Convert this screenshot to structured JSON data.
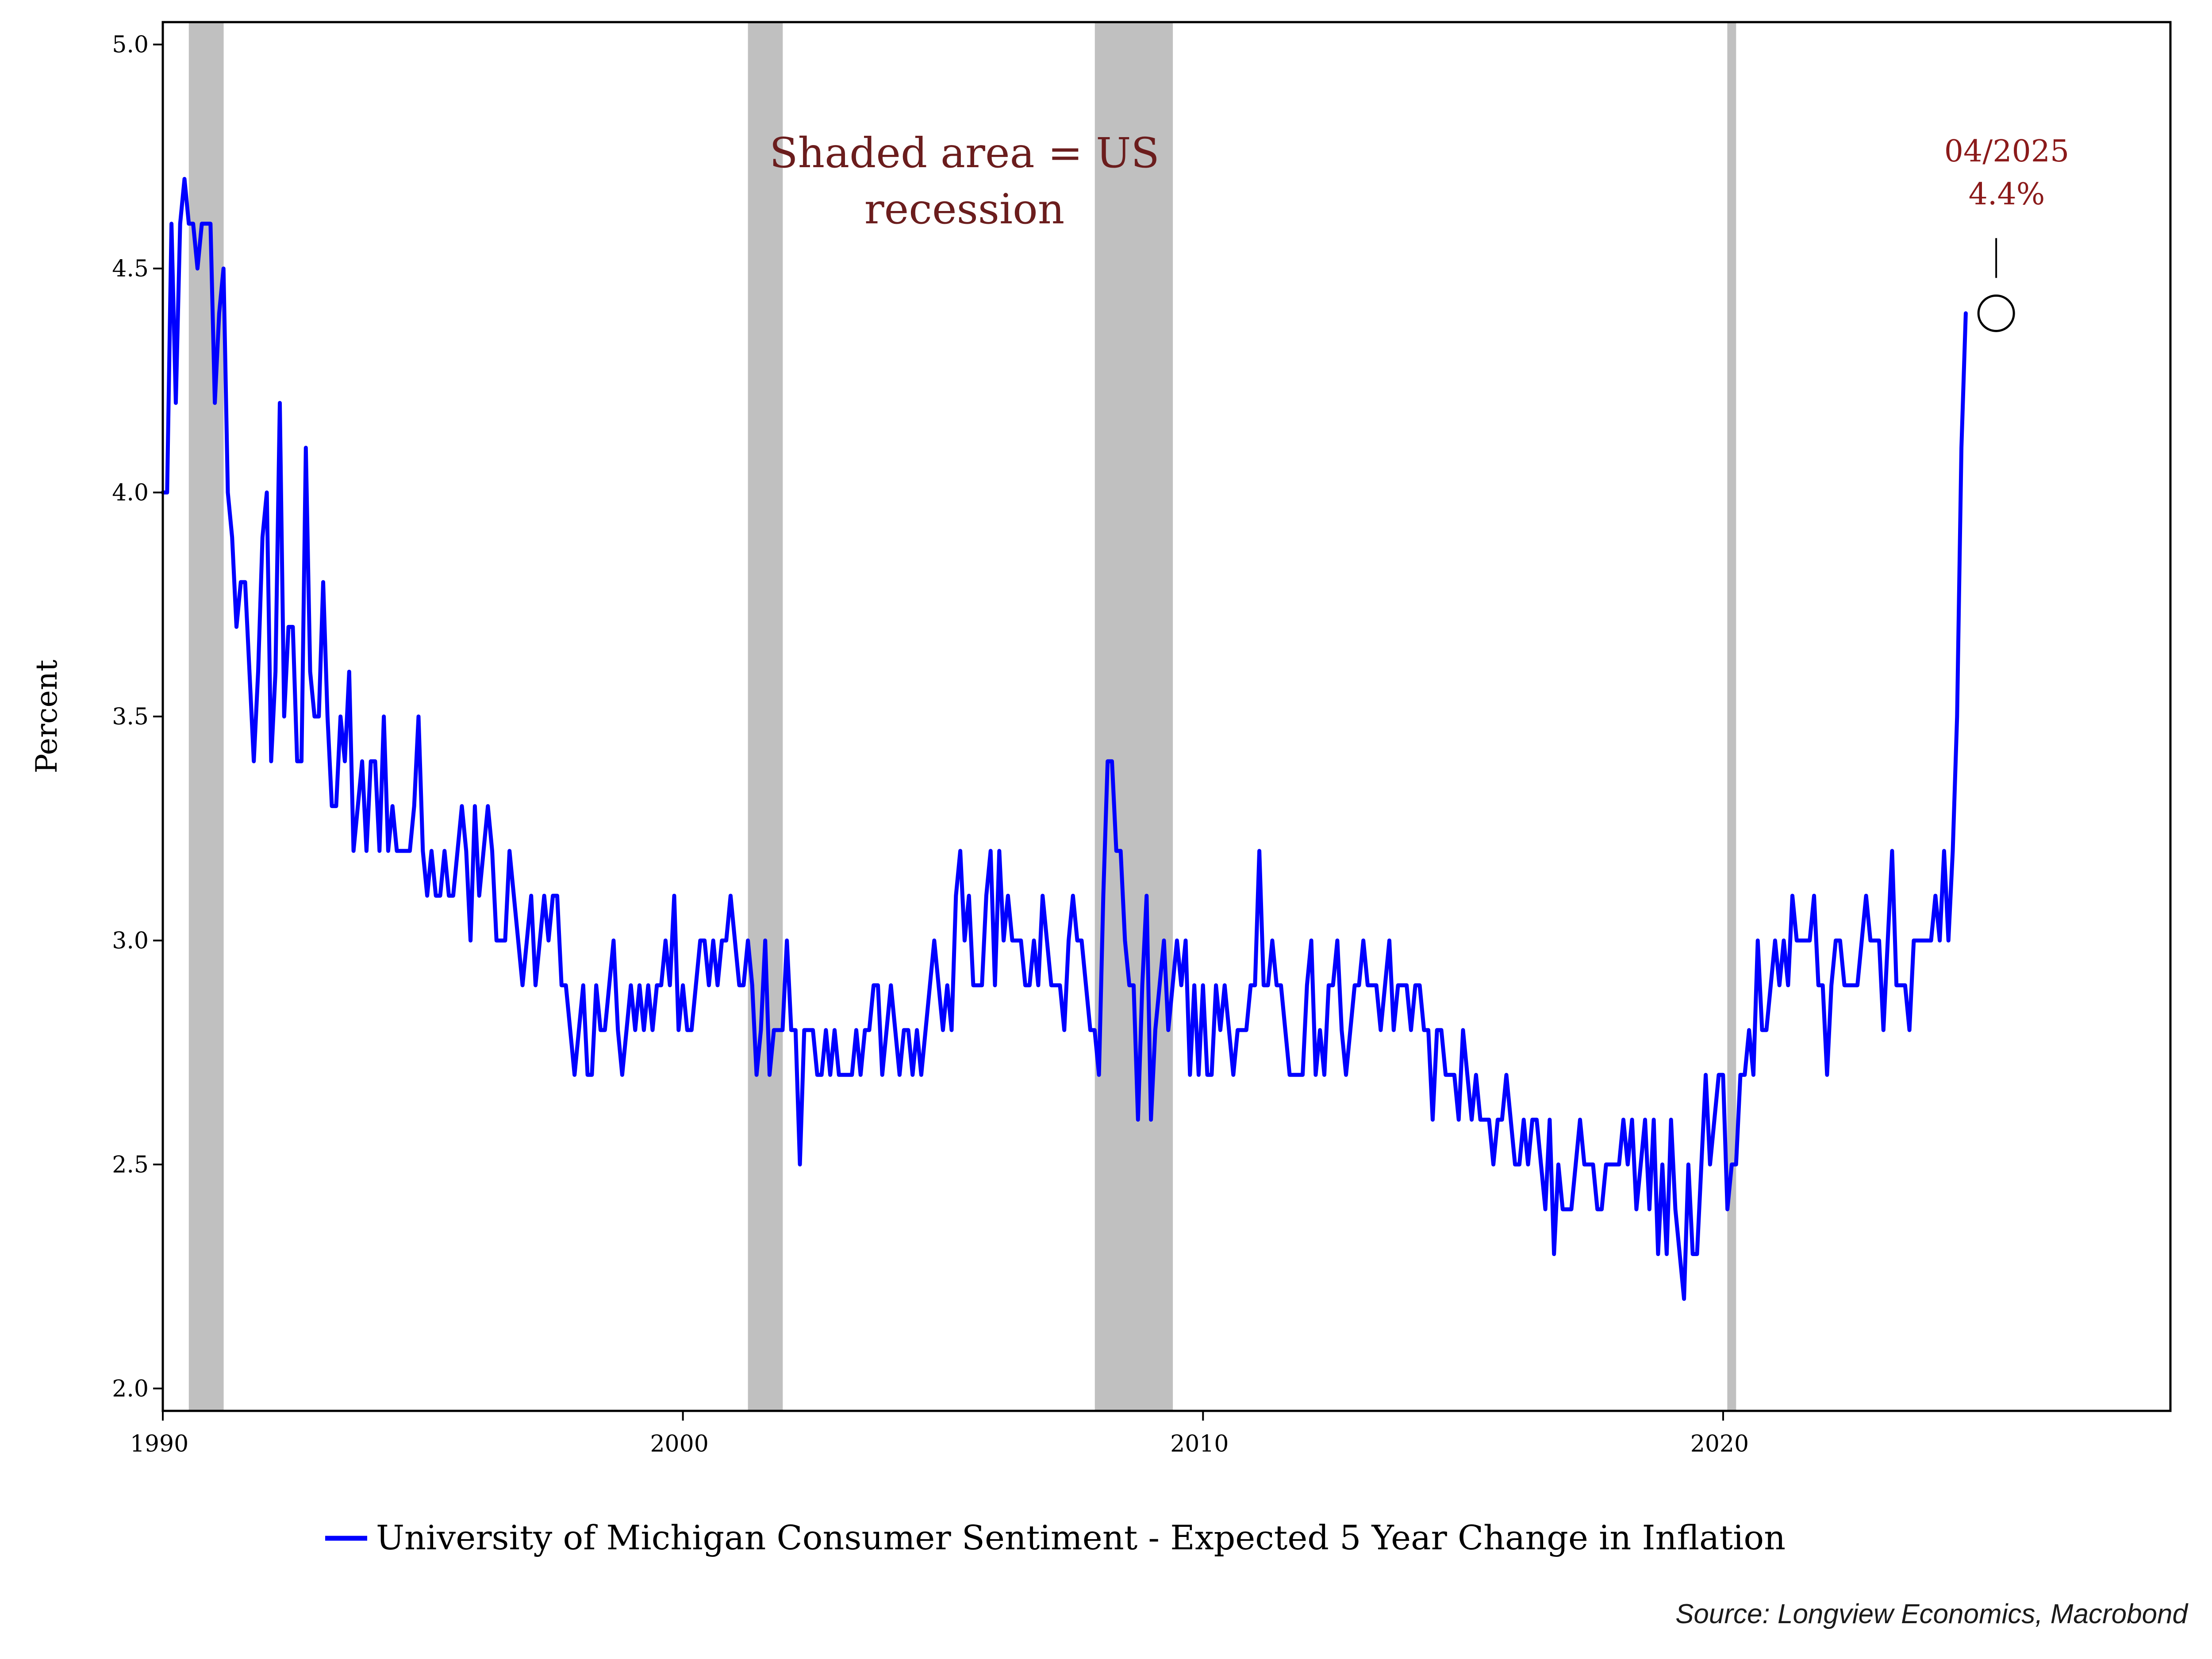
{
  "chart_data": {
    "type": "line",
    "ylabel": "Percent",
    "xlim": [
      1990.0,
      2028.6
    ],
    "ylim": [
      1.95,
      5.05
    ],
    "x_ticks": [
      1990,
      2000,
      2010,
      2020
    ],
    "x_tick_labels": [
      "1990",
      "2000",
      "2010",
      "2020"
    ],
    "y_ticks": [
      2.0,
      2.5,
      3.0,
      3.5,
      4.0,
      4.5,
      5.0
    ],
    "y_tick_labels": [
      "2.0",
      "2.5",
      "3.0",
      "3.5",
      "4.0",
      "4.5",
      "5.0"
    ],
    "grid": false,
    "recessions": [
      [
        1990.5,
        1991.17
      ],
      [
        2001.25,
        2001.92
      ],
      [
        2007.92,
        2009.42
      ],
      [
        2020.08,
        2020.25
      ]
    ],
    "annotation_lines": [
      "Shaded area = US",
      "recession"
    ],
    "callout": {
      "x": 2025.25,
      "y": 4.4,
      "date_label": "04/2025",
      "value_label": "4.4%"
    },
    "legend_position": "bottom-center",
    "series": [
      {
        "name": "University of Michigan Consumer Sentiment - Expected 5 Year Change in Inflation",
        "color": "#0000ff",
        "x_start": 1990.0,
        "x_step": 0.08333,
        "values": [
          4.0,
          4.0,
          4.6,
          4.2,
          4.6,
          4.7,
          4.6,
          4.6,
          4.5,
          4.6,
          4.6,
          4.6,
          4.2,
          4.4,
          4.5,
          4.0,
          3.9,
          3.7,
          3.8,
          3.8,
          3.6,
          3.4,
          3.6,
          3.9,
          4.0,
          3.4,
          3.6,
          4.2,
          3.5,
          3.7,
          3.7,
          3.4,
          3.4,
          4.1,
          3.6,
          3.5,
          3.5,
          3.8,
          3.5,
          3.3,
          3.3,
          3.5,
          3.4,
          3.6,
          3.2,
          3.3,
          3.4,
          3.2,
          3.4,
          3.4,
          3.2,
          3.5,
          3.2,
          3.3,
          3.2,
          3.2,
          3.2,
          3.2,
          3.3,
          3.5,
          3.2,
          3.1,
          3.2,
          3.1,
          3.1,
          3.2,
          3.1,
          3.1,
          3.2,
          3.3,
          3.2,
          3.0,
          3.3,
          3.1,
          3.2,
          3.3,
          3.2,
          3.0,
          3.0,
          3.0,
          3.2,
          3.1,
          3.0,
          2.9,
          3.0,
          3.1,
          2.9,
          3.0,
          3.1,
          3.0,
          3.1,
          3.1,
          2.9,
          2.9,
          2.8,
          2.7,
          2.8,
          2.9,
          2.7,
          2.7,
          2.9,
          2.8,
          2.8,
          2.9,
          3.0,
          2.8,
          2.7,
          2.8,
          2.9,
          2.8,
          2.9,
          2.8,
          2.9,
          2.8,
          2.9,
          2.9,
          3.0,
          2.9,
          3.1,
          2.8,
          2.9,
          2.8,
          2.8,
          2.9,
          3.0,
          3.0,
          2.9,
          3.0,
          2.9,
          3.0,
          3.0,
          3.1,
          3.0,
          2.9,
          2.9,
          3.0,
          2.9,
          2.7,
          2.8,
          3.0,
          2.7,
          2.8,
          2.8,
          2.8,
          3.0,
          2.8,
          2.8,
          2.5,
          2.8,
          2.8,
          2.8,
          2.7,
          2.7,
          2.8,
          2.7,
          2.8,
          2.7,
          2.7,
          2.7,
          2.7,
          2.8,
          2.7,
          2.8,
          2.8,
          2.9,
          2.9,
          2.7,
          2.8,
          2.9,
          2.8,
          2.7,
          2.8,
          2.8,
          2.7,
          2.8,
          2.7,
          2.8,
          2.9,
          3.0,
          2.9,
          2.8,
          2.9,
          2.8,
          3.1,
          3.2,
          3.0,
          3.1,
          2.9,
          2.9,
          2.9,
          3.1,
          3.2,
          2.9,
          3.2,
          3.0,
          3.1,
          3.0,
          3.0,
          3.0,
          2.9,
          2.9,
          3.0,
          2.9,
          3.1,
          3.0,
          2.9,
          2.9,
          2.9,
          2.8,
          3.0,
          3.1,
          3.0,
          3.0,
          2.9,
          2.8,
          2.8,
          2.7,
          3.1,
          3.4,
          3.4,
          3.2,
          3.2,
          3.0,
          2.9,
          2.9,
          2.6,
          2.9,
          3.1,
          2.6,
          2.8,
          2.9,
          3.0,
          2.8,
          2.9,
          3.0,
          2.9,
          3.0,
          2.7,
          2.9,
          2.7,
          2.9,
          2.7,
          2.7,
          2.9,
          2.8,
          2.9,
          2.8,
          2.7,
          2.8,
          2.8,
          2.8,
          2.9,
          2.9,
          3.2,
          2.9,
          2.9,
          3.0,
          2.9,
          2.9,
          2.8,
          2.7,
          2.7,
          2.7,
          2.7,
          2.9,
          3.0,
          2.7,
          2.8,
          2.7,
          2.9,
          2.9,
          3.0,
          2.8,
          2.7,
          2.8,
          2.9,
          2.9,
          3.0,
          2.9,
          2.9,
          2.9,
          2.8,
          2.9,
          3.0,
          2.8,
          2.9,
          2.9,
          2.9,
          2.8,
          2.9,
          2.9,
          2.8,
          2.8,
          2.6,
          2.8,
          2.8,
          2.7,
          2.7,
          2.7,
          2.6,
          2.8,
          2.7,
          2.6,
          2.7,
          2.6,
          2.6,
          2.6,
          2.5,
          2.6,
          2.6,
          2.7,
          2.6,
          2.5,
          2.5,
          2.6,
          2.5,
          2.6,
          2.6,
          2.5,
          2.4,
          2.6,
          2.3,
          2.5,
          2.4,
          2.4,
          2.4,
          2.5,
          2.6,
          2.5,
          2.5,
          2.5,
          2.4,
          2.4,
          2.5,
          2.5,
          2.5,
          2.5,
          2.6,
          2.5,
          2.6,
          2.4,
          2.5,
          2.6,
          2.4,
          2.6,
          2.3,
          2.5,
          2.3,
          2.6,
          2.4,
          2.3,
          2.2,
          2.5,
          2.3,
          2.3,
          2.5,
          2.7,
          2.5,
          2.6,
          2.7,
          2.7,
          2.4,
          2.5,
          2.5,
          2.7,
          2.7,
          2.8,
          2.7,
          3.0,
          2.8,
          2.8,
          2.9,
          3.0,
          2.9,
          3.0,
          2.9,
          3.1,
          3.0,
          3.0,
          3.0,
          3.0,
          3.1,
          2.9,
          2.9,
          2.7,
          2.9,
          3.0,
          3.0,
          2.9,
          2.9,
          2.9,
          2.9,
          3.0,
          3.1,
          3.0,
          3.0,
          3.0,
          2.8,
          3.0,
          3.2,
          2.9,
          2.9,
          2.9,
          2.8,
          3.0,
          3.0,
          3.0,
          3.0,
          3.0,
          3.1,
          3.0,
          3.2,
          3.0,
          3.2,
          3.5,
          4.1,
          4.4
        ]
      }
    ]
  },
  "source": "Source: Longview Economics, Macrobond"
}
